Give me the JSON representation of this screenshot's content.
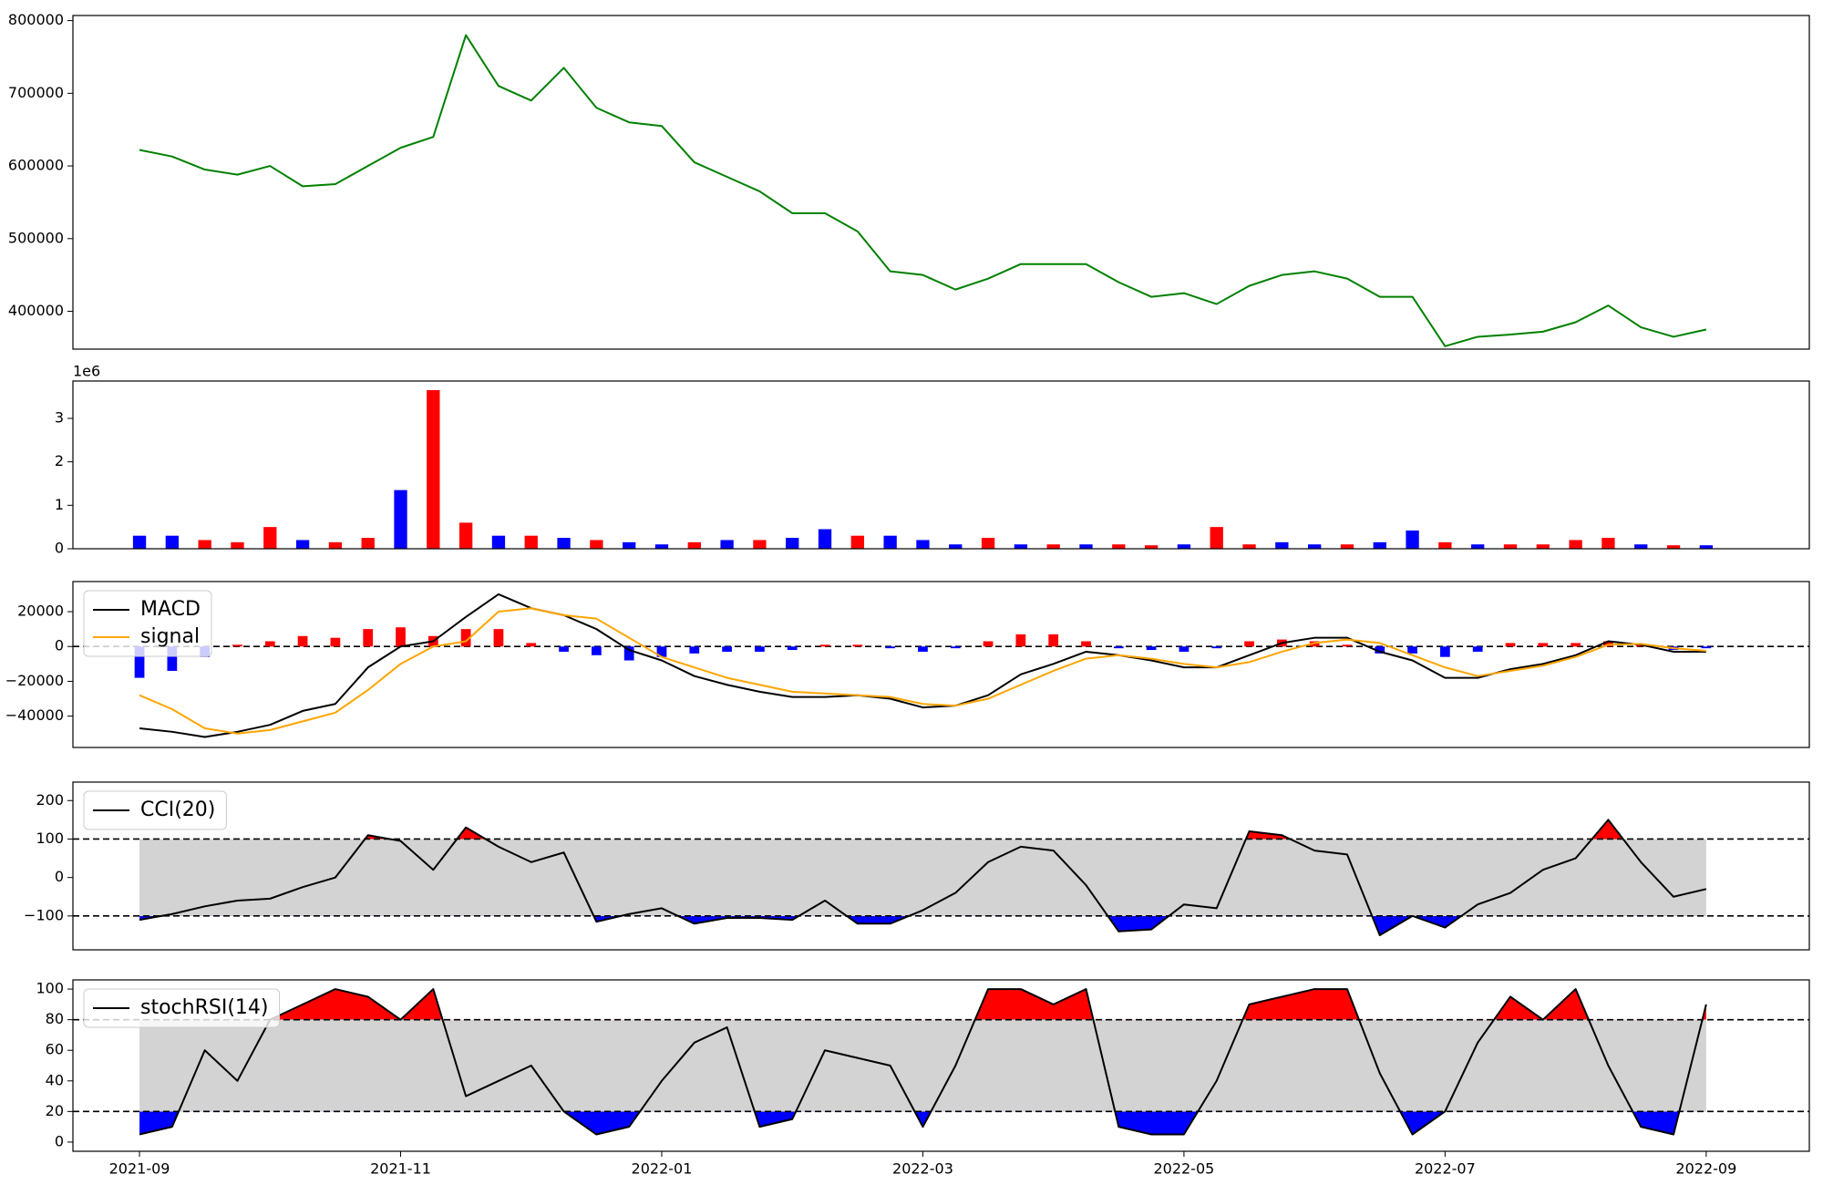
{
  "chart_data": [
    {
      "type": "line",
      "x": [
        0,
        0.25,
        0.5,
        0.75,
        1,
        1.25,
        1.5,
        1.75,
        2,
        2.25,
        2.5,
        2.75,
        3,
        3.25,
        3.5,
        3.75,
        4,
        4.25,
        4.5,
        4.75,
        5,
        5.25,
        5.5,
        5.75,
        6,
        6.25,
        6.5,
        6.75,
        7,
        7.25,
        7.5,
        7.75,
        8,
        8.25,
        8.5,
        8.75,
        9,
        9.25,
        9.5,
        9.75,
        10,
        10.25,
        10.5,
        10.75,
        11,
        11.25,
        11.5,
        11.75,
        12
      ],
      "series": [
        {
          "color": "green",
          "values": [
            622000,
            613000,
            595000,
            588000,
            600000,
            572000,
            575000,
            600000,
            625000,
            640000,
            780000,
            710000,
            690000,
            735000,
            680000,
            660000,
            655000,
            605000,
            585000,
            565000,
            535000,
            535000,
            510000,
            455000,
            450000,
            430000,
            445000,
            465000,
            465000,
            465000,
            440000,
            420000,
            425000,
            410000,
            435000,
            450000,
            455000,
            445000,
            420000,
            420000,
            352000,
            365000,
            368000,
            372000,
            385000,
            408000,
            378000,
            365000,
            375000
          ]
        }
      ],
      "xlim": [
        -0.51,
        12.79
      ],
      "ylim": [
        348000,
        807000
      ],
      "yticks": [
        400000,
        500000,
        600000,
        700000,
        800000
      ]
    },
    {
      "type": "bar",
      "x": [
        0,
        0.25,
        0.5,
        0.75,
        1,
        1.25,
        1.5,
        1.75,
        2,
        2.25,
        2.5,
        2.75,
        3,
        3.25,
        3.5,
        3.75,
        4,
        4.25,
        4.5,
        4.75,
        5,
        5.25,
        5.5,
        5.75,
        6,
        6.25,
        6.5,
        6.75,
        7,
        7.25,
        7.5,
        7.75,
        8,
        8.25,
        8.5,
        8.75,
        9,
        9.25,
        9.5,
        9.75,
        10,
        10.25,
        10.5,
        10.75,
        11,
        11.25,
        11.5,
        11.75,
        12
      ],
      "values": [
        300000,
        300000,
        200000,
        150000,
        500000,
        200000,
        150000,
        250000,
        1350000,
        3650000,
        600000,
        300000,
        300000,
        250000,
        200000,
        150000,
        100000,
        150000,
        200000,
        200000,
        250000,
        450000,
        300000,
        300000,
        200000,
        100000,
        250000,
        100000,
        100000,
        100000,
        100000,
        80000,
        100000,
        500000,
        100000,
        150000,
        100000,
        100000,
        150000,
        420000,
        150000,
        100000,
        100000,
        100000,
        200000,
        250000,
        100000,
        80000,
        80000
      ],
      "colors": [
        "blue",
        "blue",
        "red",
        "red",
        "red",
        "blue",
        "red",
        "red",
        "blue",
        "red",
        "red",
        "blue",
        "red",
        "blue",
        "red",
        "blue",
        "blue",
        "red",
        "blue",
        "red",
        "blue",
        "blue",
        "red",
        "blue",
        "blue",
        "blue",
        "red",
        "blue",
        "red",
        "blue",
        "red",
        "red",
        "blue",
        "red",
        "red",
        "blue",
        "blue",
        "red",
        "blue",
        "blue",
        "red",
        "blue",
        "red",
        "red",
        "red",
        "red",
        "blue",
        "red",
        "blue"
      ],
      "xlim": [
        -0.51,
        12.79
      ],
      "ylim": [
        0,
        3860000
      ],
      "yticks": [
        0,
        {
          "value": 1000000,
          "label": "1"
        },
        {
          "value": 2000000,
          "label": "2"
        },
        {
          "value": 3000000,
          "label": "3"
        }
      ],
      "offset_label": "1e6"
    },
    {
      "type": "line",
      "x": [
        0,
        0.25,
        0.5,
        0.75,
        1,
        1.25,
        1.5,
        1.75,
        2,
        2.25,
        2.5,
        2.75,
        3,
        3.25,
        3.5,
        3.75,
        4,
        4.25,
        4.5,
        4.75,
        5,
        5.25,
        5.5,
        5.75,
        6,
        6.25,
        6.5,
        6.75,
        7,
        7.25,
        7.5,
        7.75,
        8,
        8.25,
        8.5,
        8.75,
        9,
        9.25,
        9.5,
        9.75,
        10,
        10.25,
        10.5,
        10.75,
        11,
        11.25,
        11.5,
        11.75,
        12
      ],
      "bars": {
        "positive_color": "red",
        "negative_color": "blue",
        "values": [
          -18000,
          -14000,
          -6000,
          1000,
          3000,
          6000,
          5000,
          10000,
          11000,
          6000,
          10000,
          10000,
          2000,
          -3000,
          -5000,
          -8000,
          -6000,
          -4000,
          -3000,
          -3000,
          -2000,
          1000,
          1000,
          -1000,
          -3000,
          -1000,
          3000,
          7000,
          7000,
          3000,
          -1000,
          -2000,
          -3000,
          -1000,
          3000,
          4000,
          3000,
          1000,
          -4000,
          -4000,
          -6000,
          -3000,
          2000,
          2000,
          2000,
          3000,
          1000,
          -2000,
          -1000
        ]
      },
      "series": [
        {
          "name": "MACD",
          "color": "black",
          "values": [
            -47000,
            -49000,
            -52000,
            -49000,
            -45000,
            -37000,
            -33000,
            -12000,
            0,
            3000,
            17000,
            30000,
            22000,
            18000,
            10000,
            -2000,
            -8000,
            -17000,
            -22000,
            -26000,
            -29000,
            -29000,
            -28000,
            -30000,
            -35000,
            -34000,
            -28000,
            -16000,
            -10000,
            -3000,
            -5000,
            -8000,
            -12000,
            -12000,
            -5000,
            2000,
            5000,
            5000,
            -3000,
            -8000,
            -18000,
            -18000,
            -13000,
            -10000,
            -5000,
            3000,
            1000,
            -3000,
            -3000
          ]
        },
        {
          "name": "signal",
          "color": "orange",
          "values": [
            -28000,
            -36000,
            -47000,
            -50000,
            -48000,
            -43000,
            -38000,
            -25000,
            -10000,
            0,
            3000,
            20000,
            22000,
            18000,
            16000,
            5000,
            -6000,
            -12000,
            -18000,
            -22000,
            -26000,
            -27000,
            -28000,
            -29000,
            -33000,
            -34000,
            -30000,
            -22000,
            -14000,
            -7000,
            -5000,
            -7000,
            -10000,
            -12000,
            -9000,
            -3000,
            2000,
            4000,
            2000,
            -5000,
            -12000,
            -17000,
            -14000,
            -11000,
            -6000,
            1000,
            1500,
            -1000,
            -2500
          ]
        }
      ],
      "hlines": [
        0
      ],
      "xlim": [
        -0.51,
        12.79
      ],
      "ylim": [
        -58000,
        37300
      ],
      "yticks": [
        {
          "value": -40000,
          "label": "−40000"
        },
        {
          "value": -20000,
          "label": "−20000"
        },
        0,
        20000
      ],
      "legend": "upper left"
    },
    {
      "type": "line",
      "x": [
        0,
        0.25,
        0.5,
        0.75,
        1,
        1.25,
        1.5,
        1.75,
        2,
        2.25,
        2.5,
        2.75,
        3,
        3.25,
        3.5,
        3.75,
        4,
        4.25,
        4.5,
        4.75,
        5,
        5.25,
        5.5,
        5.75,
        6,
        6.25,
        6.5,
        6.75,
        7,
        7.25,
        7.5,
        7.75,
        8,
        8.25,
        8.5,
        8.75,
        9,
        9.25,
        9.5,
        9.75,
        10,
        10.25,
        10.5,
        10.75,
        11,
        11.25,
        11.5,
        11.75,
        12
      ],
      "series": [
        {
          "name": "CCI(20)",
          "color": "black",
          "values": [
            -110,
            -95,
            -75,
            -60,
            -55,
            -25,
            0,
            110,
            95,
            20,
            130,
            80,
            40,
            65,
            -115,
            -95,
            -80,
            -120,
            -105,
            -105,
            -110,
            -60,
            -120,
            -120,
            -85,
            -40,
            40,
            80,
            70,
            -20,
            -140,
            -135,
            -70,
            -80,
            120,
            110,
            70,
            60,
            -150,
            -100,
            -130,
            -70,
            -40,
            20,
            50,
            150,
            40,
            -50,
            -30
          ]
        }
      ],
      "thresholds": [
        -100,
        100
      ],
      "band_color": "lightgray",
      "above_color": "red",
      "below_color": "blue",
      "xlim": [
        -0.51,
        12.79
      ],
      "ylim": [
        -188,
        248
      ],
      "yticks": [
        {
          "value": -100,
          "label": "−100"
        },
        0,
        100,
        200
      ],
      "legend": "upper left"
    },
    {
      "type": "line",
      "x": [
        0,
        0.25,
        0.5,
        0.75,
        1,
        1.25,
        1.5,
        1.75,
        2,
        2.25,
        2.5,
        2.75,
        3,
        3.25,
        3.5,
        3.75,
        4,
        4.25,
        4.5,
        4.75,
        5,
        5.25,
        5.5,
        5.75,
        6,
        6.25,
        6.5,
        6.75,
        7,
        7.25,
        7.5,
        7.75,
        8,
        8.25,
        8.5,
        8.75,
        9,
        9.25,
        9.5,
        9.75,
        10,
        10.25,
        10.5,
        10.75,
        11,
        11.25,
        11.5,
        11.75,
        12
      ],
      "series": [
        {
          "name": "stochRSI(14)",
          "color": "black",
          "values": [
            5,
            10,
            60,
            40,
            80,
            90,
            100,
            95,
            80,
            100,
            30,
            40,
            50,
            20,
            5,
            10,
            40,
            65,
            75,
            10,
            15,
            60,
            55,
            50,
            10,
            50,
            100,
            100,
            90,
            100,
            10,
            5,
            5,
            40,
            90,
            95,
            100,
            100,
            45,
            5,
            20,
            65,
            95,
            80,
            100,
            50,
            10,
            5,
            90
          ]
        }
      ],
      "thresholds": [
        20,
        80
      ],
      "band_color": "lightgray",
      "above_color": "red",
      "below_color": "blue",
      "xlim": [
        -0.51,
        12.79
      ],
      "ylim": [
        -6,
        106
      ],
      "yticks": [
        0,
        20,
        40,
        60,
        80,
        100
      ],
      "xticks": [
        {
          "value": 0,
          "label": "2021-09"
        },
        {
          "value": 2,
          "label": "2021-11"
        },
        {
          "value": 4,
          "label": "2022-01"
        },
        {
          "value": 6,
          "label": "2022-03"
        },
        {
          "value": 8,
          "label": "2022-05"
        },
        {
          "value": 10,
          "label": "2022-07"
        },
        {
          "value": 12,
          "label": "2022-09"
        }
      ],
      "legend": "upper left"
    }
  ]
}
